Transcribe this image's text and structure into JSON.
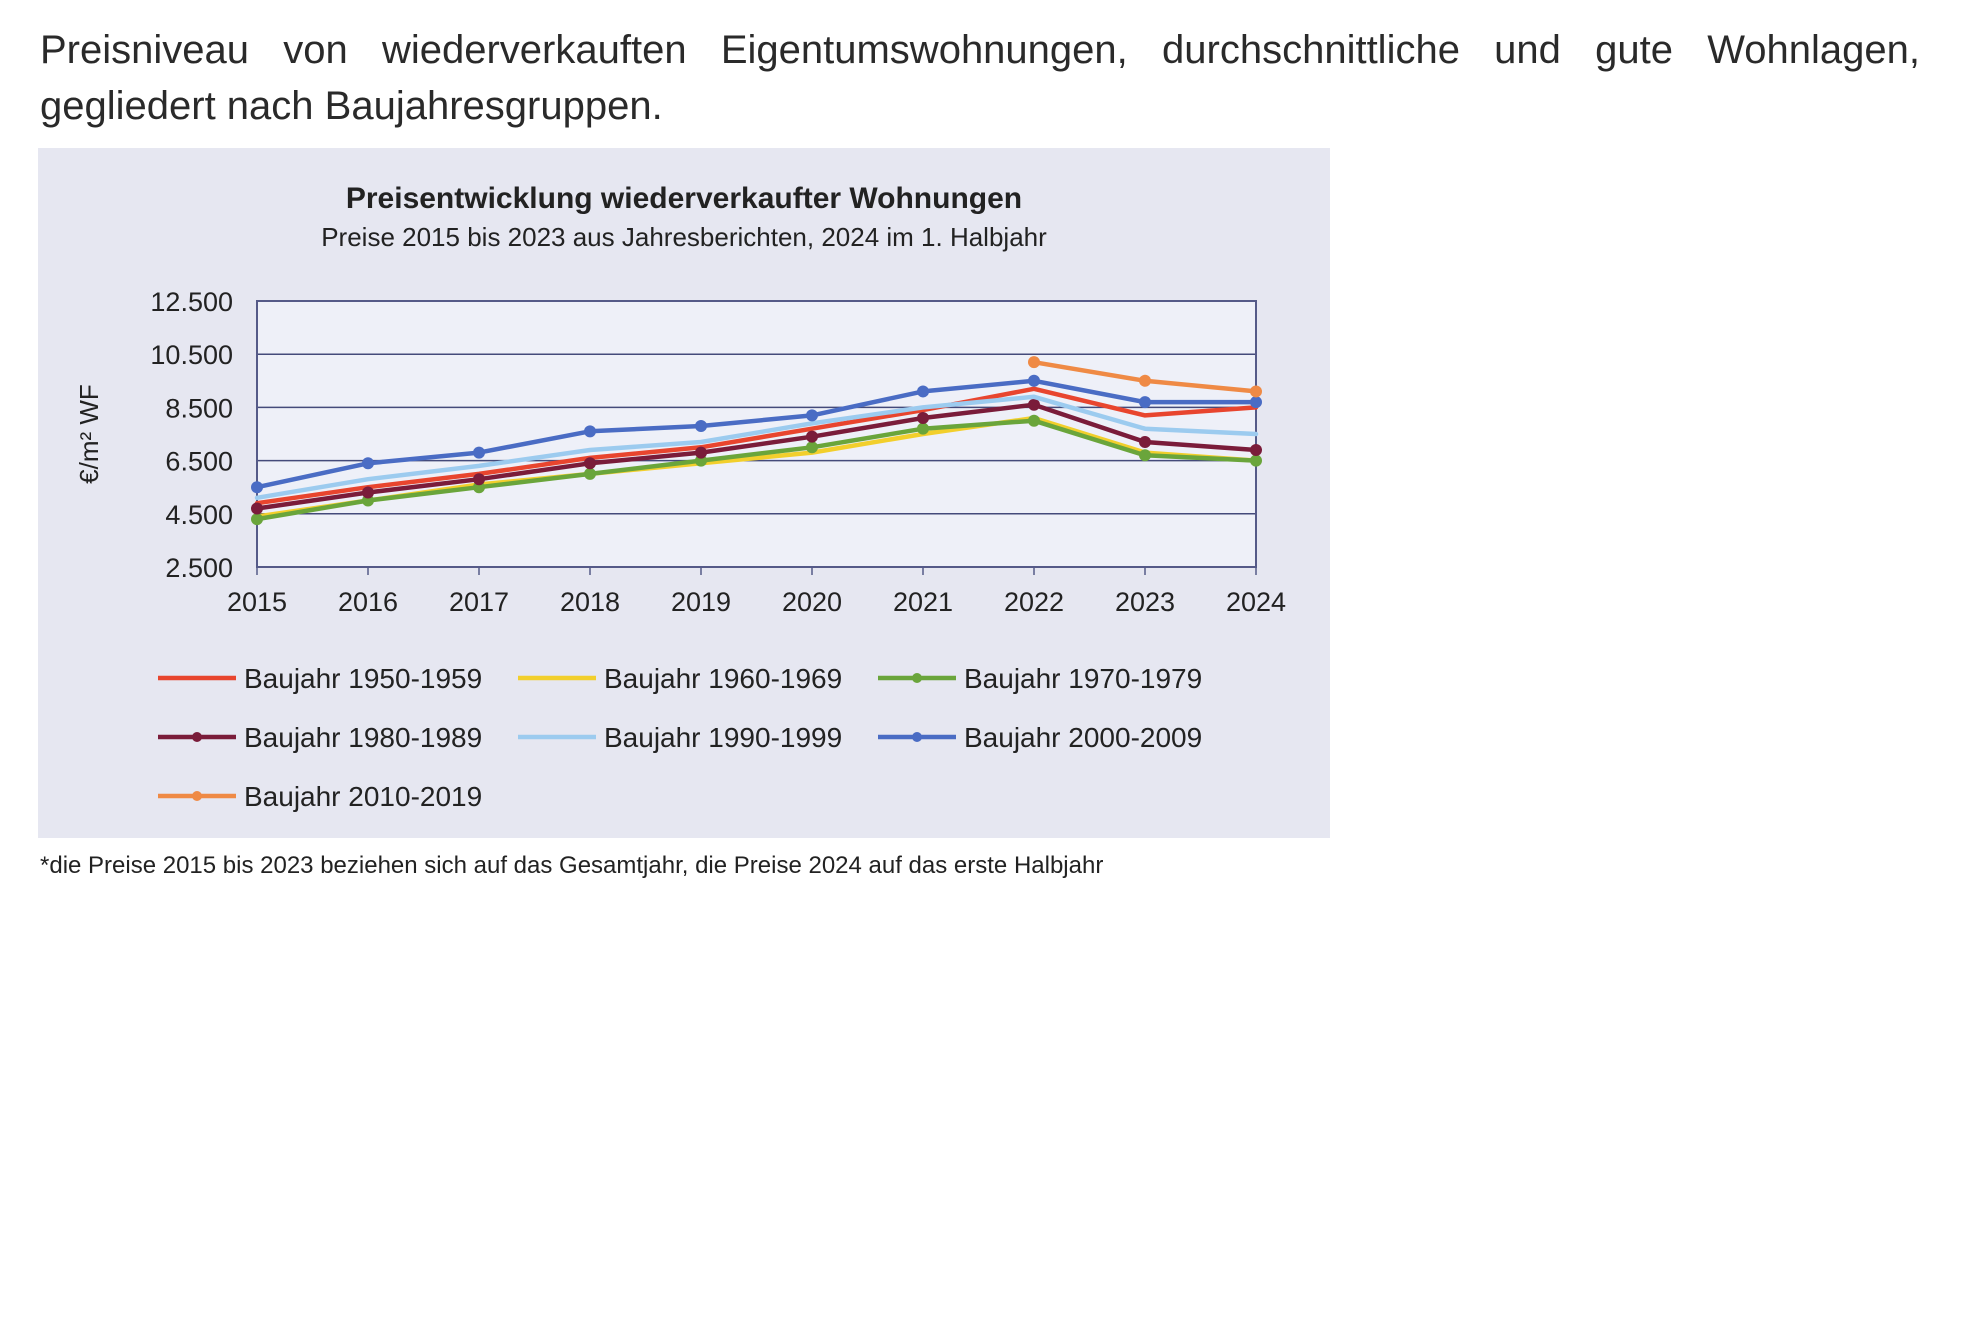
{
  "heading": "Preisniveau von wiederverkauften Eigentumswohnungen, durchschnittliche und gute Wohnlagen, gegliedert nach Baujahresgruppen.",
  "footnote": "*die Preise 2015 bis 2023 beziehen sich auf das Gesamtjahr, die Preise 2024 auf das erste Halbjahr",
  "chart_data": {
    "type": "line",
    "title": "Preisentwicklung wiederverkaufter Wohnungen",
    "subtitle": "Preise 2015 bis 2023 aus Jahresberichten, 2024 im 1. Halbjahr",
    "xlabel": "",
    "ylabel": "€/m² WF",
    "ylim": [
      2500,
      12500
    ],
    "yticks": [
      2500,
      4500,
      6500,
      8500,
      10500,
      12500
    ],
    "ytick_labels": [
      "2.500",
      "4.500",
      "6.500",
      "8.500",
      "10.500",
      "12.500"
    ],
    "x": [
      "2015",
      "2016",
      "2017",
      "2018",
      "2019",
      "2020",
      "2021",
      "2022",
      "2023",
      "2024"
    ],
    "grid": true,
    "legend_position": "bottom",
    "series": [
      {
        "name": "Baujahr 1950-1959",
        "color": "#e8452e",
        "markers": false,
        "values": [
          4900,
          5500,
          6000,
          6600,
          7000,
          7700,
          8400,
          9200,
          8200,
          8500
        ]
      },
      {
        "name": "Baujahr 1960-1969",
        "color": "#f2cf2c",
        "markers": false,
        "values": [
          4400,
          5000,
          5600,
          6000,
          6400,
          6800,
          7500,
          8100,
          6800,
          6500
        ]
      },
      {
        "name": "Baujahr 1970-1979",
        "color": "#6aa53b",
        "markers": true,
        "values": [
          4300,
          5000,
          5500,
          6000,
          6500,
          7000,
          7700,
          8000,
          6700,
          6500
        ]
      },
      {
        "name": "Baujahr 1980-1989",
        "color": "#7a1c3a",
        "markers": true,
        "values": [
          4700,
          5300,
          5800,
          6400,
          6800,
          7400,
          8100,
          8600,
          7200,
          6900
        ]
      },
      {
        "name": "Baujahr 1990-1999",
        "color": "#9ccbef",
        "markers": false,
        "values": [
          5100,
          5800,
          6300,
          6900,
          7200,
          7900,
          8500,
          8900,
          7700,
          7500
        ]
      },
      {
        "name": "Baujahr 2000-2009",
        "color": "#4a6cc4",
        "markers": true,
        "values": [
          5500,
          6400,
          6800,
          7600,
          7800,
          8200,
          9100,
          9500,
          8700,
          8700
        ]
      },
      {
        "name": "Baujahr 2010-2019",
        "color": "#ef8a45",
        "markers": true,
        "values": [
          null,
          null,
          null,
          null,
          null,
          null,
          null,
          10200,
          9500,
          9100
        ]
      }
    ]
  }
}
